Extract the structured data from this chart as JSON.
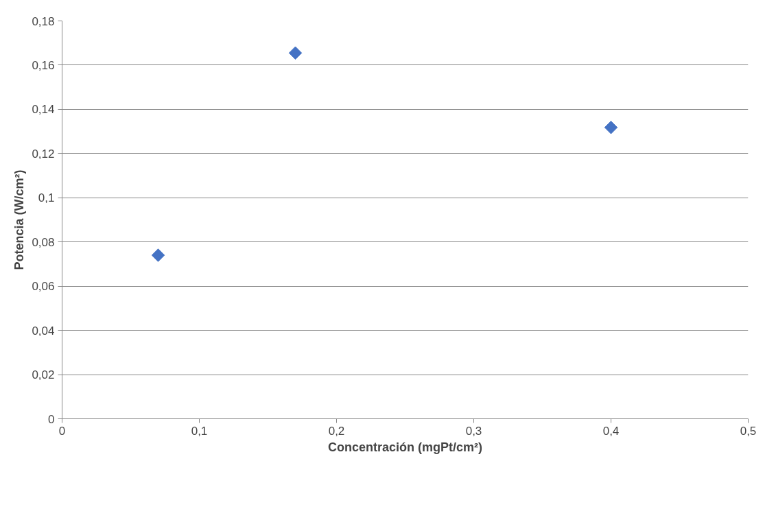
{
  "chart_data": {
    "type": "scatter",
    "xlabel": "Concentración (mgPt/cm²)",
    "ylabel": "Potencia (W/cm²)",
    "x": [
      0.07,
      0.17,
      0.4
    ],
    "series": [
      {
        "color": "#4472c4",
        "values": [
          0.074,
          0.1655,
          0.1318
        ]
      }
    ],
    "xlim": [
      0,
      0.5
    ],
    "ylim": [
      0,
      0.18
    ],
    "xticks": [
      0,
      {
        "value": 0.1,
        "label": "0,1"
      },
      {
        "value": 0.2,
        "label": "0,2"
      },
      {
        "value": 0.3,
        "label": "0,3"
      },
      {
        "value": 0.4,
        "label": "0,4"
      },
      {
        "value": 0.5,
        "label": "0,5"
      }
    ],
    "yticks": [
      0,
      {
        "value": 0.02,
        "label": "0,02"
      },
      {
        "value": 0.04,
        "label": "0,04"
      },
      {
        "value": 0.06,
        "label": "0,06"
      },
      {
        "value": 0.08,
        "label": "0,08"
      },
      {
        "value": 0.1,
        "label": "0,1"
      },
      {
        "value": 0.12,
        "label": "0,12"
      },
      {
        "value": 0.14,
        "label": "0,14"
      },
      {
        "value": 0.16,
        "label": "0,16"
      },
      {
        "value": 0.18,
        "label": "0,18"
      }
    ],
    "grid": "y",
    "marker": "diamond"
  }
}
